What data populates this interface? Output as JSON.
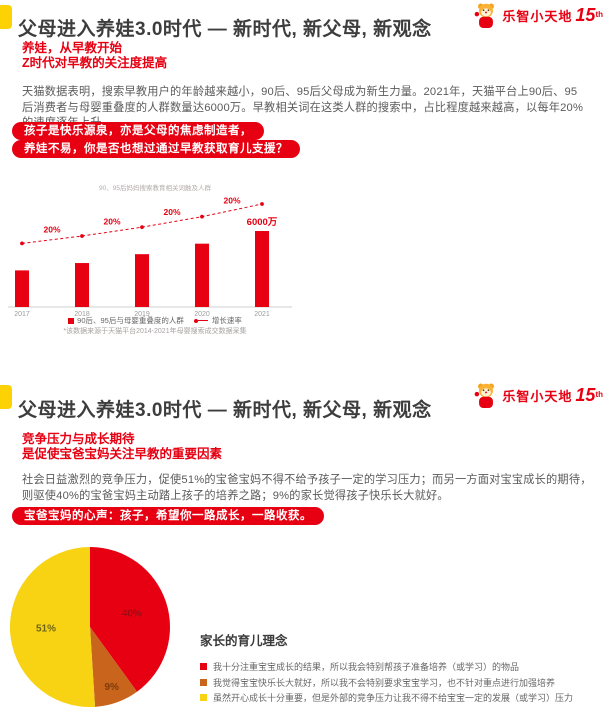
{
  "header": {
    "title": "父母进入养娃3.0时代 — 新时代, 新父母, 新观念"
  },
  "brand": {
    "name": "乐智小天地",
    "anniversary_number": "15",
    "anniversary_suffix": "th",
    "accent_color": "#e60012",
    "tab_color": "#fcd205"
  },
  "slide1": {
    "subtitle1": "养娃，从早教开始",
    "subtitle2": "Z时代对早教的关注度提高",
    "body": "天猫数据表明，搜索早教用户的年龄越来越小，90后、95后父母成为新生力量。2021年，天猫平台上90后、95后消费者与母婴重叠度的人群数量达6000万。早教相关词在这类人群的搜索中，占比程度越来越高，以每年20%的速度逐年上升。",
    "callout1": "孩子是快乐源泉，亦是父母的焦虑制造者，",
    "callout2": "养娃不易，你是否也想过通过早教获取育儿支援？",
    "footnote": "*该数据来源于天猫平台2014-2021年母婴搜索成交数据采集"
  },
  "slide2": {
    "subtitle1": "竞争压力与成长期待",
    "subtitle2": "是促使宝爸宝妈关注早教的重要因素",
    "body": "社会日益激烈的竞争压力，促使51%的宝爸宝妈不得不给予孩子一定的学习压力；而另一方面对宝宝成长的期待，则驱使40%的宝爸宝妈主动踏上孩子的培养之路；9%的家长觉得孩子快乐长大就好。",
    "callout": "宝爸宝妈的心声：孩子，希望你一路成长，一路收获。"
  },
  "chart_data": [
    {
      "type": "bar",
      "title": "90、95后妈妈搜索教育相关词触及人群",
      "categories": [
        "2017",
        "2018",
        "2019",
        "2020",
        "2021"
      ],
      "series": [
        {
          "name": "90后、95后与母婴重叠度的人群",
          "type": "bar",
          "color": "#e60012",
          "unit": "万",
          "values": [
            2890,
            3470,
            4170,
            5000,
            6000
          ]
        },
        {
          "name": "增长速率",
          "type": "line",
          "color": "#e60012",
          "annotations": [
            "20%",
            "20%",
            "20%",
            "20%"
          ]
        }
      ],
      "data_label": "6000万",
      "ylim": [
        0,
        6500
      ],
      "grid": false,
      "legend_position": "bottom"
    },
    {
      "type": "pie",
      "title": "家长的育儿理念",
      "labels": [
        "我十分注重宝宝成长的结果，所以我会特别帮孩子准备培养（或学习）的物品",
        "我觉得宝宝快乐长大就好，所以我不会特别要求宝宝学习，也不针对重点进行加强培养",
        "虽然开心成长十分重要，但是外部的竞争压力让我不得不给宝宝一定的发展（或学习）压力"
      ],
      "values": [
        40,
        9,
        51
      ],
      "value_labels": [
        "40%",
        "9%",
        "51%"
      ],
      "colors": [
        "#e60012",
        "#c8641c",
        "#f7d313"
      ],
      "slice_label_colors": [
        "#9e0a14",
        "#7d3c0a",
        "#6e6418"
      ],
      "start_angle": "top",
      "direction": "clockwise",
      "legend_position": "right"
    }
  ]
}
